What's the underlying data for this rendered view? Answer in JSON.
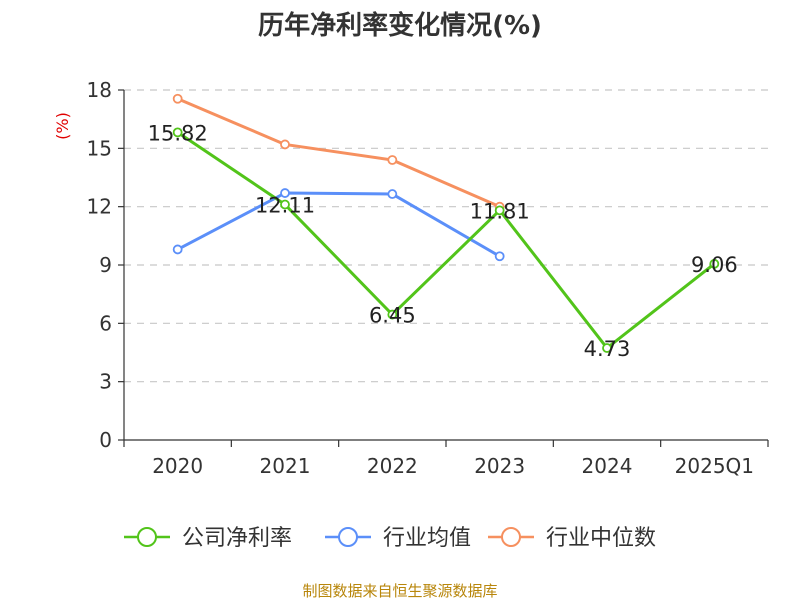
{
  "title": "历年净利率变化情况(%)",
  "source": "制图数据来自恒生聚源数据库",
  "chart_data": {
    "type": "line",
    "title": "历年净利率变化情况(%)",
    "xlabel": "",
    "ylabel": "(%)",
    "ylim": [
      0,
      18
    ],
    "yticks": [
      0,
      3,
      6,
      9,
      12,
      15,
      18
    ],
    "grid": true,
    "legend_position": "bottom",
    "categories": [
      "2020",
      "2021",
      "2022",
      "2023",
      "2024",
      "2025Q1"
    ],
    "series": [
      {
        "name": "公司净利率",
        "color": "#52c41a",
        "values": [
          15.82,
          12.11,
          6.45,
          11.81,
          4.73,
          9.06
        ],
        "labels": [
          "15.82",
          "12.11",
          "6.45",
          "11.81",
          "4.73",
          "9.06"
        ]
      },
      {
        "name": "行业均值",
        "color": "#5b8ff9",
        "values": [
          9.8,
          12.7,
          12.65,
          9.45,
          null,
          null
        ]
      },
      {
        "name": "行业中位数",
        "color": "#f6905f",
        "values": [
          17.55,
          15.2,
          14.4,
          12.0,
          null,
          null
        ]
      }
    ]
  }
}
